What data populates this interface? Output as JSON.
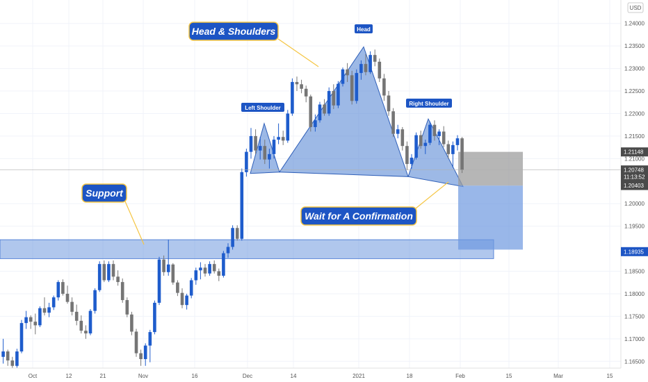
{
  "chart_data": {
    "type": "candlestick",
    "currency": "USD",
    "ylim": [
      1.1635,
      1.2452
    ],
    "y_ticks": [
      "1.24000",
      "1.23500",
      "1.23000",
      "1.22500",
      "1.22000",
      "1.21500",
      "1.21000",
      "1.20000",
      "1.19500",
      "1.18500",
      "1.18000",
      "1.17500",
      "1.17000",
      "1.16500"
    ],
    "x_ticks": [
      "Oct",
      "12",
      "21",
      "Nov",
      "16",
      "Dec",
      "14",
      "2021",
      "18",
      "Feb",
      "15",
      "Mar",
      "15"
    ],
    "price_labels": [
      {
        "text": "1.21148",
        "value": 1.21148,
        "style": "dark"
      },
      {
        "text": "1.20748",
        "value": 1.20748,
        "style": "dark"
      },
      {
        "text": "11:13:52",
        "value": 1.20595,
        "style": "dark"
      },
      {
        "text": "1.20403",
        "value": 1.20403,
        "style": "dark"
      },
      {
        "text": "1.18935",
        "value": 1.18935,
        "style": "blue"
      }
    ],
    "current_price": 1.20748,
    "support_zone": {
      "high": 1.192,
      "low": 1.1878
    },
    "head_and_shoulders": {
      "left_shoulder": 1.2178,
      "head": 1.2348,
      "right_shoulder": 1.2188,
      "neckline": 1.2067
    },
    "position_box": {
      "entry": 1.204,
      "stop": 1.2115,
      "target": 1.1898
    },
    "candles": [
      [
        1.166,
        1.17,
        1.1645,
        1.1672
      ],
      [
        1.1672,
        1.1676,
        1.164,
        1.1652
      ],
      [
        1.1652,
        1.166,
        1.1632,
        1.164
      ],
      [
        1.164,
        1.1678,
        1.1636,
        1.1672
      ],
      [
        1.1672,
        1.1742,
        1.1668,
        1.1735
      ],
      [
        1.1735,
        1.1762,
        1.1722,
        1.1748
      ],
      [
        1.1748,
        1.1752,
        1.1722,
        1.1738
      ],
      [
        1.1738,
        1.1756,
        1.171,
        1.173
      ],
      [
        1.173,
        1.1772,
        1.1726,
        1.1768
      ],
      [
        1.1768,
        1.1792,
        1.1752,
        1.1758
      ],
      [
        1.1758,
        1.178,
        1.1748,
        1.177
      ],
      [
        1.177,
        1.1796,
        1.1764,
        1.1792
      ],
      [
        1.1792,
        1.183,
        1.1785,
        1.1826
      ],
      [
        1.1826,
        1.1832,
        1.1796,
        1.18
      ],
      [
        1.18,
        1.1818,
        1.1778,
        1.1782
      ],
      [
        1.1782,
        1.1792,
        1.1752,
        1.176
      ],
      [
        1.176,
        1.1776,
        1.173,
        1.174
      ],
      [
        1.174,
        1.1752,
        1.1712,
        1.1718
      ],
      [
        1.1718,
        1.173,
        1.17,
        1.1712
      ],
      [
        1.1712,
        1.1766,
        1.1708,
        1.1762
      ],
      [
        1.1762,
        1.1812,
        1.1756,
        1.1808
      ],
      [
        1.1808,
        1.1872,
        1.1804,
        1.1866
      ],
      [
        1.1866,
        1.1874,
        1.1826,
        1.183
      ],
      [
        1.183,
        1.1872,
        1.1826,
        1.1866
      ],
      [
        1.1866,
        1.1874,
        1.183,
        1.1838
      ],
      [
        1.1838,
        1.1852,
        1.1818,
        1.1826
      ],
      [
        1.1826,
        1.1834,
        1.178,
        1.1786
      ],
      [
        1.1786,
        1.1792,
        1.1748,
        1.1754
      ],
      [
        1.1754,
        1.176,
        1.1708,
        1.1716
      ],
      [
        1.1716,
        1.1722,
        1.166,
        1.1668
      ],
      [
        1.1668,
        1.1676,
        1.164,
        1.1655
      ],
      [
        1.1655,
        1.169,
        1.164,
        1.1685
      ],
      [
        1.1685,
        1.172,
        1.1648,
        1.1715
      ],
      [
        1.1715,
        1.1785,
        1.171,
        1.178
      ],
      [
        1.178,
        1.1882,
        1.1775,
        1.1876
      ],
      [
        1.1876,
        1.1885,
        1.184,
        1.1848
      ],
      [
        1.1848,
        1.192,
        1.184,
        1.1865
      ],
      [
        1.1865,
        1.1868,
        1.182,
        1.1825
      ],
      [
        1.1825,
        1.183,
        1.1795,
        1.1802
      ],
      [
        1.1802,
        1.1812,
        1.1768,
        1.1775
      ],
      [
        1.1775,
        1.18,
        1.1765,
        1.1796
      ],
      [
        1.1796,
        1.1835,
        1.179,
        1.183
      ],
      [
        1.183,
        1.1858,
        1.182,
        1.1852
      ],
      [
        1.1852,
        1.187,
        1.1832,
        1.1858
      ],
      [
        1.1858,
        1.1866,
        1.1838,
        1.1845
      ],
      [
        1.1845,
        1.1872,
        1.184,
        1.1866
      ],
      [
        1.1866,
        1.1874,
        1.1845,
        1.185
      ],
      [
        1.185,
        1.1856,
        1.1828,
        1.184
      ],
      [
        1.184,
        1.1895,
        1.1836,
        1.189
      ],
      [
        1.189,
        1.1912,
        1.188,
        1.1904
      ],
      [
        1.1904,
        1.1952,
        1.1898,
        1.1946
      ],
      [
        1.1946,
        1.1952,
        1.1918,
        1.1922
      ],
      [
        1.1922,
        1.2078,
        1.1918,
        1.207
      ],
      [
        1.207,
        1.2122,
        1.206,
        1.2115
      ],
      [
        1.2115,
        1.2168,
        1.21,
        1.215
      ],
      [
        1.215,
        1.2165,
        1.211,
        1.2118
      ],
      [
        1.2118,
        1.2148,
        1.2098,
        1.2128
      ],
      [
        1.2128,
        1.2142,
        1.2088,
        1.2098
      ],
      [
        1.2098,
        1.2122,
        1.2078,
        1.211
      ],
      [
        1.211,
        1.215,
        1.21,
        1.2142
      ],
      [
        1.2142,
        1.2178,
        1.2132,
        1.2148
      ],
      [
        1.2148,
        1.2162,
        1.213,
        1.214
      ],
      [
        1.214,
        1.2208,
        1.2135,
        1.22
      ],
      [
        1.22,
        1.2278,
        1.2195,
        1.227
      ],
      [
        1.227,
        1.2282,
        1.225,
        1.2265
      ],
      [
        1.2265,
        1.2275,
        1.2245,
        1.2255
      ],
      [
        1.2255,
        1.2262,
        1.2225,
        1.2238
      ],
      [
        1.2238,
        1.2242,
        1.216,
        1.217
      ],
      [
        1.217,
        1.2198,
        1.216,
        1.2185
      ],
      [
        1.2185,
        1.2226,
        1.218,
        1.222
      ],
      [
        1.222,
        1.2232,
        1.2195,
        1.22
      ],
      [
        1.22,
        1.2258,
        1.2195,
        1.225
      ],
      [
        1.225,
        1.2265,
        1.221,
        1.2218
      ],
      [
        1.2218,
        1.2272,
        1.2212,
        1.2266
      ],
      [
        1.2266,
        1.2302,
        1.226,
        1.2298
      ],
      [
        1.2298,
        1.2312,
        1.227,
        1.2285
      ],
      [
        1.2285,
        1.2295,
        1.222,
        1.2228
      ],
      [
        1.2228,
        1.2298,
        1.2222,
        1.229
      ],
      [
        1.229,
        1.2318,
        1.2275,
        1.231
      ],
      [
        1.231,
        1.2332,
        1.2285,
        1.2292
      ],
      [
        1.2292,
        1.2338,
        1.2288,
        1.233
      ],
      [
        1.233,
        1.2342,
        1.2305,
        1.2315
      ],
      [
        1.2315,
        1.2322,
        1.227,
        1.2278
      ],
      [
        1.2278,
        1.2288,
        1.2228,
        1.224
      ],
      [
        1.224,
        1.225,
        1.2195,
        1.2205
      ],
      [
        1.2205,
        1.2212,
        1.2148,
        1.2155
      ],
      [
        1.2155,
        1.2175,
        1.2145,
        1.2165
      ],
      [
        1.2165,
        1.217,
        1.2118,
        1.2128
      ],
      [
        1.2128,
        1.2138,
        1.2075,
        1.2088
      ],
      [
        1.2088,
        1.211,
        1.2078,
        1.2102
      ],
      [
        1.2102,
        1.2158,
        1.2098,
        1.2152
      ],
      [
        1.2152,
        1.2162,
        1.2122,
        1.2128
      ],
      [
        1.2128,
        1.2142,
        1.211,
        1.2135
      ],
      [
        1.2135,
        1.2182,
        1.213,
        1.2175
      ],
      [
        1.2175,
        1.2185,
        1.214,
        1.215
      ],
      [
        1.215,
        1.2165,
        1.213,
        1.216
      ],
      [
        1.216,
        1.2172,
        1.2125,
        1.2132
      ],
      [
        1.2132,
        1.214,
        1.21,
        1.211
      ],
      [
        1.211,
        1.2138,
        1.208,
        1.213
      ],
      [
        1.213,
        1.2152,
        1.2118,
        1.2145
      ],
      [
        1.2145,
        1.2148,
        1.2068,
        1.2075
      ]
    ]
  },
  "annotations": {
    "head_shoulders": "Head & Shoulders",
    "head": "Head",
    "left_shoulder": "Left Shoulder",
    "right_shoulder": "Right Shoulder",
    "support": "Support",
    "wait": "Wait for A Confirmation"
  },
  "colors": {
    "bull": "#1e5ccc",
    "bear": "#757575",
    "pattern_fill": "#5b8bd6",
    "zone_fill": "#6f99de",
    "callout_fill": "#1d55c4",
    "callout_border": "#f5c542",
    "stop_box": "#9e9e9e",
    "target_box": "#6e99e0"
  }
}
